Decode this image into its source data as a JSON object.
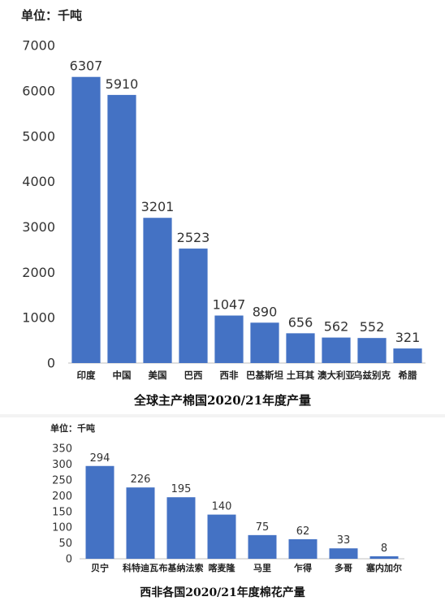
{
  "chart_data": [
    {
      "type": "bar",
      "unit_label": "单位：千吨",
      "title": "全球主产棉国2020/21年度产量",
      "categories": [
        "印度",
        "中国",
        "美国",
        "巴西",
        "西非",
        "巴基斯坦",
        "土耳其",
        "澳大利亚",
        "乌兹别克",
        "希腊"
      ],
      "values": [
        6307,
        5910,
        3201,
        2523,
        1047,
        890,
        656,
        562,
        552,
        321
      ],
      "ylim": [
        0,
        7000
      ],
      "yticks": [
        0,
        1000,
        2000,
        3000,
        4000,
        5000,
        6000,
        7000
      ],
      "bar_color": "#4472C4",
      "grid": false,
      "legend": "none"
    },
    {
      "type": "bar",
      "unit_label": "单位：千吨",
      "title": "西非各国2020/21年度棉花产量",
      "categories": [
        "贝宁",
        "科特迪瓦",
        "布基纳法索",
        "喀麦隆",
        "马里",
        "乍得",
        "多哥",
        "塞内加尔"
      ],
      "values": [
        294,
        226,
        195,
        140,
        75,
        62,
        33,
        8
      ],
      "ylim": [
        0,
        350
      ],
      "yticks": [
        0,
        50,
        100,
        150,
        200,
        250,
        300,
        350
      ],
      "bar_color": "#4472C4",
      "grid": false,
      "legend": "none"
    }
  ]
}
